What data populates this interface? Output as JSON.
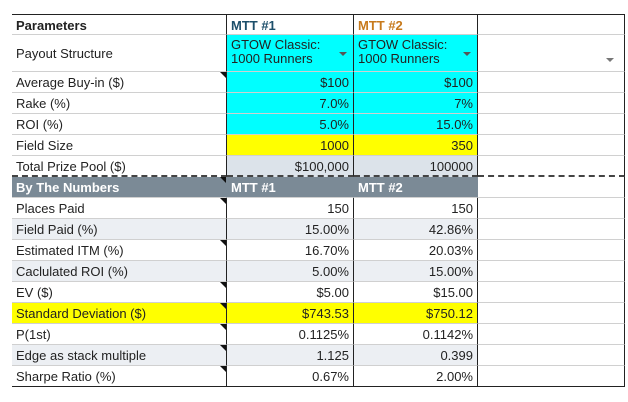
{
  "parameters": {
    "header": "Parameters",
    "mtt1": "MTT #1",
    "mtt2": "MTT #2",
    "payout_label": "Payout Structure",
    "payout_mtt1_line1": "GTOW Classic:",
    "payout_mtt1_line2": "1000 Runners",
    "payout_mtt2_line1": "GTOW Classic:",
    "payout_mtt2_line2": "1000 Runners",
    "rows": [
      {
        "label": "Average Buy-in ($)",
        "v1": "$100",
        "v2": "$100"
      },
      {
        "label": "Rake (%)",
        "v1": "7.0%",
        "v2": "7%"
      },
      {
        "label": "ROI (%)",
        "v1": "5.0%",
        "v2": "15.0%"
      },
      {
        "label": "Field Size",
        "v1": "1000",
        "v2": "350"
      },
      {
        "label": "Total Prize Pool ($)",
        "v1": "$100,000",
        "v2": "100000"
      }
    ]
  },
  "numbers": {
    "header": "By The Numbers",
    "mtt1": "MTT #1",
    "mtt2": "MTT #2",
    "rows": [
      {
        "label": "Places Paid",
        "v1": "150",
        "v2": "150"
      },
      {
        "label": "Field Paid (%)",
        "v1": "15.00%",
        "v2": "42.86%"
      },
      {
        "label": "Estimated ITM (%)",
        "v1": "16.70%",
        "v2": "20.03%"
      },
      {
        "label": "Caclulated ROI (%)",
        "v1": "5.00%",
        "v2": "15.00%"
      },
      {
        "label": "EV ($)",
        "v1": "$5.00",
        "v2": "$15.00"
      },
      {
        "label": "Standard Deviation ($)",
        "v1": "$743.53",
        "v2": "$750.12"
      },
      {
        "label": "P(1st)",
        "v1": "0.1125%",
        "v2": "0.1142%"
      },
      {
        "label": "Edge as stack multiple",
        "v1": "1.125",
        "v2": "0.399"
      },
      {
        "label": "Sharpe Ratio (%)",
        "v1": "0.67%",
        "v2": "2.00%"
      }
    ]
  },
  "colors": {
    "cyan": "#00ffff",
    "yellow": "#ffff00",
    "section": "#7b8a96",
    "mtt1": "#1d4f6b",
    "mtt2": "#c77a1c"
  }
}
